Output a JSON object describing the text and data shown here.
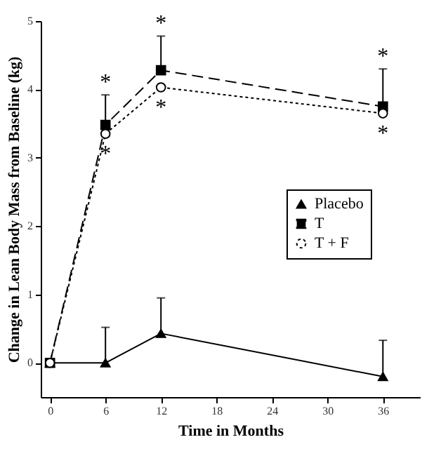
{
  "chart_data": {
    "type": "line",
    "xlabel": "Time in Months",
    "ylabel": "Change in Lean Body Mass from Baseline (kg)",
    "x": [
      0,
      6,
      12,
      36
    ],
    "series": [
      {
        "name": "Placebo",
        "color": "#000000",
        "marker": "triangle",
        "line_style": "solid",
        "values": [
          0,
          0,
          0.43,
          -0.2
        ],
        "errors": [
          null,
          [
            0,
            0.52
          ],
          [
            0.43,
            0.95
          ],
          [
            -0.2,
            0.33
          ]
        ]
      },
      {
        "name": "T",
        "color": "#000000",
        "marker": "square",
        "line_style": "dashed",
        "values": [
          0,
          3.48,
          4.28,
          3.75
        ],
        "errors": [
          null,
          [
            3.48,
            3.92
          ],
          [
            4.28,
            4.78
          ],
          [
            3.75,
            4.3
          ]
        ]
      },
      {
        "name": "T + F",
        "color": "#000000",
        "marker": "circle",
        "line_style": "dotted",
        "values": [
          0,
          3.35,
          4.03,
          3.65
        ]
      }
    ],
    "annotations": [
      {
        "text": "*",
        "x": 6,
        "y": 3.92
      },
      {
        "text": "*",
        "x": 6,
        "y": 3.35
      },
      {
        "text": "*",
        "x": 12,
        "y": 4.78
      },
      {
        "text": "*",
        "x": 12,
        "y": 4.03
      },
      {
        "text": "*",
        "x": 36,
        "y": 4.3
      },
      {
        "text": "*",
        "x": 36,
        "y": 3.65
      }
    ],
    "xlim": [
      -1,
      40
    ],
    "xticks": [
      0,
      6,
      12,
      18,
      24,
      30,
      36
    ],
    "ylim": [
      -0.5,
      5
    ],
    "yticks": [
      0,
      1,
      2,
      3,
      4,
      5
    ],
    "grid": false,
    "legend": "right"
  }
}
